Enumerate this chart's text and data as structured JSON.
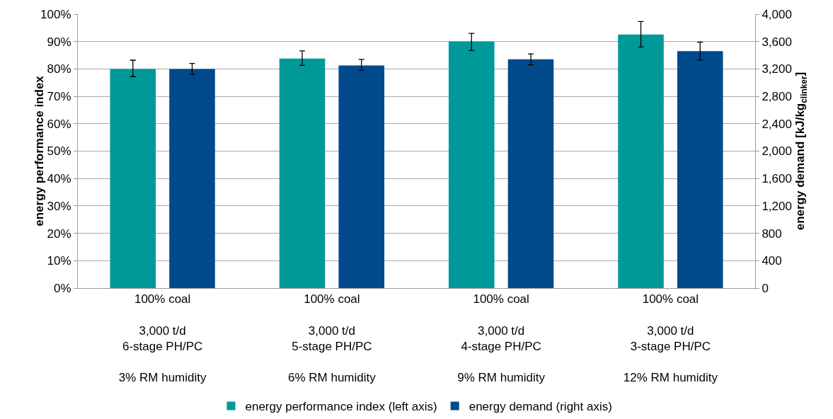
{
  "chart_data": {
    "type": "bar",
    "ylabel": "energy performance index",
    "y2label": "energy demand [kJ/kg$_{clinker}$]",
    "categories": [
      "100% coal\n\n3,000 t/d\n6-stage PH/PC\n\n3% RM humidity",
      "100% coal\n\n3,000 t/d\n5-stage PH/PC\n\n6% RM humidity",
      "100% coal\n\n3,000 t/d\n4-stage PH/PC\n\n9% RM humidity",
      "100% coal\n\n3,000 t/d\n3-stage PH/PC\n\n12% RM humidity"
    ],
    "series": [
      {
        "name": "energy performance index (left axis)",
        "color": "#009999",
        "values": [
          80,
          83.8,
          90,
          92.6
        ],
        "errors": [
          [
            77.2,
            83.2
          ],
          [
            81.3,
            86.6
          ],
          [
            86.7,
            93
          ],
          [
            88,
            97.3
          ]
        ]
      },
      {
        "name": "energy demand (right axis)",
        "color": "#004a8c",
        "axis": "y2",
        "values": [
          3200,
          3250,
          3340,
          3460
        ],
        "errors": [
          [
            3120,
            3280
          ],
          [
            3180,
            3340
          ],
          [
            3260,
            3420
          ],
          [
            3330,
            3590
          ]
        ]
      }
    ],
    "ylim": [
      0,
      100
    ],
    "yticks": [
      {
        "value": 0,
        "label": "0%"
      },
      {
        "value": 10,
        "label": "10%"
      },
      {
        "value": 20,
        "label": "20%"
      },
      {
        "value": 30,
        "label": "30%"
      },
      {
        "value": 40,
        "label": "40%"
      },
      {
        "value": 50,
        "label": "50%"
      },
      {
        "value": 60,
        "label": "60%"
      },
      {
        "value": 70,
        "label": "70%"
      },
      {
        "value": 80,
        "label": "80%"
      },
      {
        "value": 90,
        "label": "90%"
      },
      {
        "value": 100,
        "label": "100%"
      }
    ],
    "y2lim": [
      0,
      4000
    ],
    "y2ticks": [
      0,
      {
        "value": 400,
        "label": "400"
      },
      {
        "value": 800,
        "label": "800"
      },
      {
        "value": 1200,
        "label": "1,200"
      },
      {
        "value": 1600,
        "label": "1,600"
      },
      {
        "value": 2000,
        "label": "2,000"
      },
      {
        "value": 2400,
        "label": "2,400"
      },
      {
        "value": 2800,
        "label": "2,800"
      },
      {
        "value": 3200,
        "label": "3,200"
      },
      {
        "value": 3600,
        "label": "3,600"
      },
      {
        "value": 4000,
        "label": "4,000"
      }
    ],
    "grid": "y",
    "legend": "bottom"
  }
}
